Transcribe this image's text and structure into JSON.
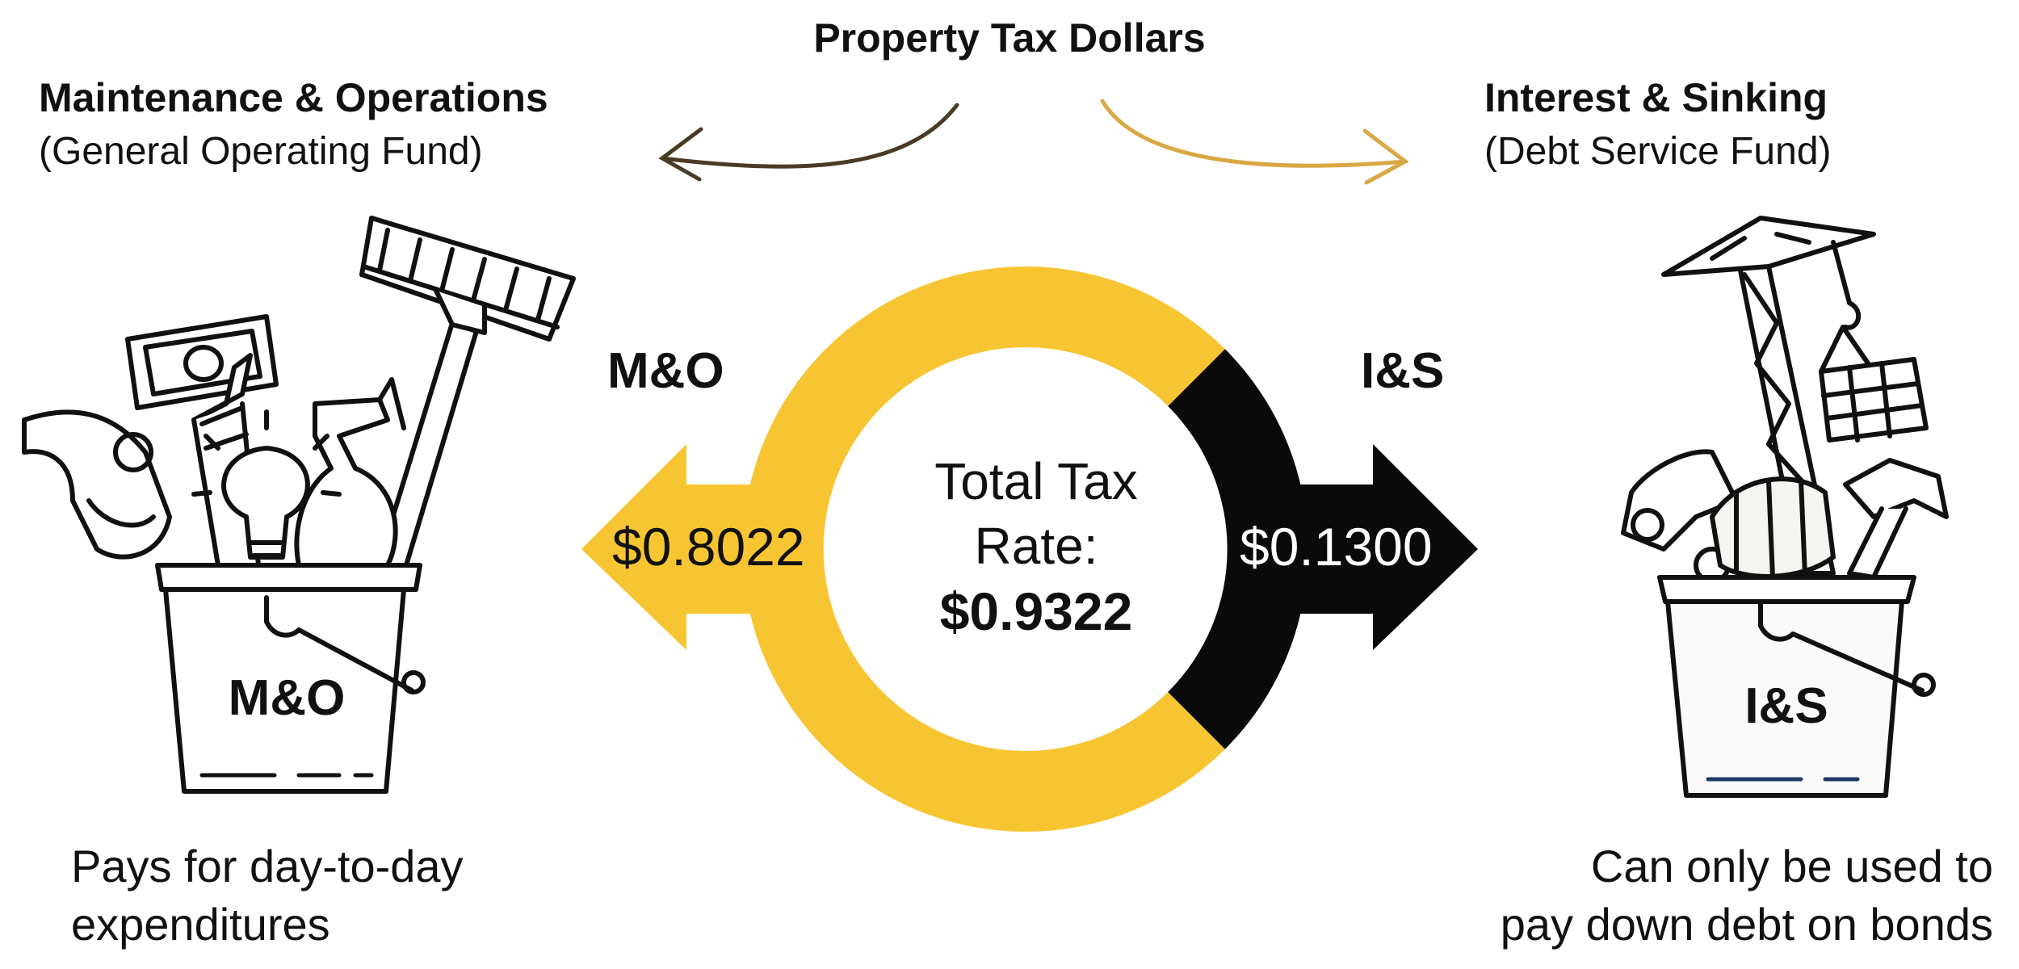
{
  "title": "Property Tax Dollars",
  "mo": {
    "heading": "Maintenance & Operations",
    "subheading": "(General Operating Fund)",
    "label": "M&O",
    "bucket_label": "M&O",
    "value": "$0.8022",
    "description_line1": "Pays for day-to-day",
    "description_line2": "expenditures"
  },
  "is": {
    "heading": "Interest & Sinking",
    "subheading": "(Debt Service Fund)",
    "label": "I&S",
    "bucket_label": "I&S",
    "value": "$0.1300",
    "description_line1": "Can only be used to",
    "description_line2": "pay down debt on bonds"
  },
  "total": {
    "line1": "Total Tax",
    "line2": "Rate:",
    "value": "$0.9322"
  },
  "colors": {
    "mo": "#f7c532",
    "is": "#0a0a0a",
    "arrow_left": "#4a3b25",
    "arrow_right": "#d9a744"
  },
  "icons": {
    "mo_bucket": "maintenance-tools-bucket-icon",
    "is_bucket": "construction-bucket-icon"
  }
}
